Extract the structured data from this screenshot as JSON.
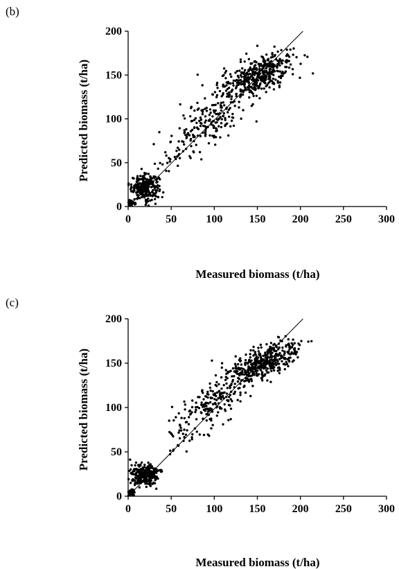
{
  "chart_data": [
    {
      "type": "scatter",
      "panel_label": "(b)",
      "xlabel": "Measured biomass (t/ha)",
      "ylabel": "Predicted biomass (t/ha)",
      "xlim": [
        0,
        300
      ],
      "ylim": [
        0,
        200
      ],
      "xticks": [
        0,
        50,
        100,
        150,
        200,
        250,
        300
      ],
      "yticks": [
        0,
        50,
        100,
        150,
        200
      ],
      "grid": false,
      "reference_line": {
        "from": [
          0,
          0
        ],
        "to": [
          203,
          200
        ]
      },
      "series": [
        {
          "clusters": [
            {
              "cx": 20,
              "cy": 22,
              "sx": 8,
              "sy": 7,
              "n": 260
            },
            {
              "cx": 4,
              "cy": 4,
              "sx": 2,
              "sy": 2,
              "n": 40
            },
            {
              "cx": 95,
              "cy": 100,
              "sx": 18,
              "sy": 20,
              "n": 160
            },
            {
              "cx": 150,
              "cy": 150,
              "sx": 22,
              "sy": 18,
              "n": 420
            },
            {
              "cx": 60,
              "cy": 65,
              "sx": 15,
              "sy": 18,
              "n": 40
            }
          ]
        }
      ]
    },
    {
      "type": "scatter",
      "panel_label": "(c)",
      "xlabel": "Measured biomass (t/ha)",
      "ylabel": "Predicted biomass (t/ha)",
      "xlim": [
        0,
        300
      ],
      "ylim": [
        0,
        200
      ],
      "xticks": [
        0,
        50,
        100,
        150,
        200,
        250,
        300
      ],
      "yticks": [
        0,
        50,
        100,
        150,
        200
      ],
      "grid": false,
      "reference_line": {
        "from": [
          0,
          0
        ],
        "to": [
          203,
          200
        ]
      },
      "series": [
        {
          "clusters": [
            {
              "cx": 20,
              "cy": 24,
              "sx": 8,
              "sy": 6,
              "n": 260
            },
            {
              "cx": 4,
              "cy": 4,
              "sx": 2,
              "sy": 2,
              "n": 40
            },
            {
              "cx": 100,
              "cy": 110,
              "sx": 18,
              "sy": 18,
              "n": 170
            },
            {
              "cx": 155,
              "cy": 148,
              "sx": 22,
              "sy": 15,
              "n": 420
            },
            {
              "cx": 65,
              "cy": 75,
              "sx": 14,
              "sy": 16,
              "n": 40
            }
          ]
        }
      ]
    }
  ]
}
